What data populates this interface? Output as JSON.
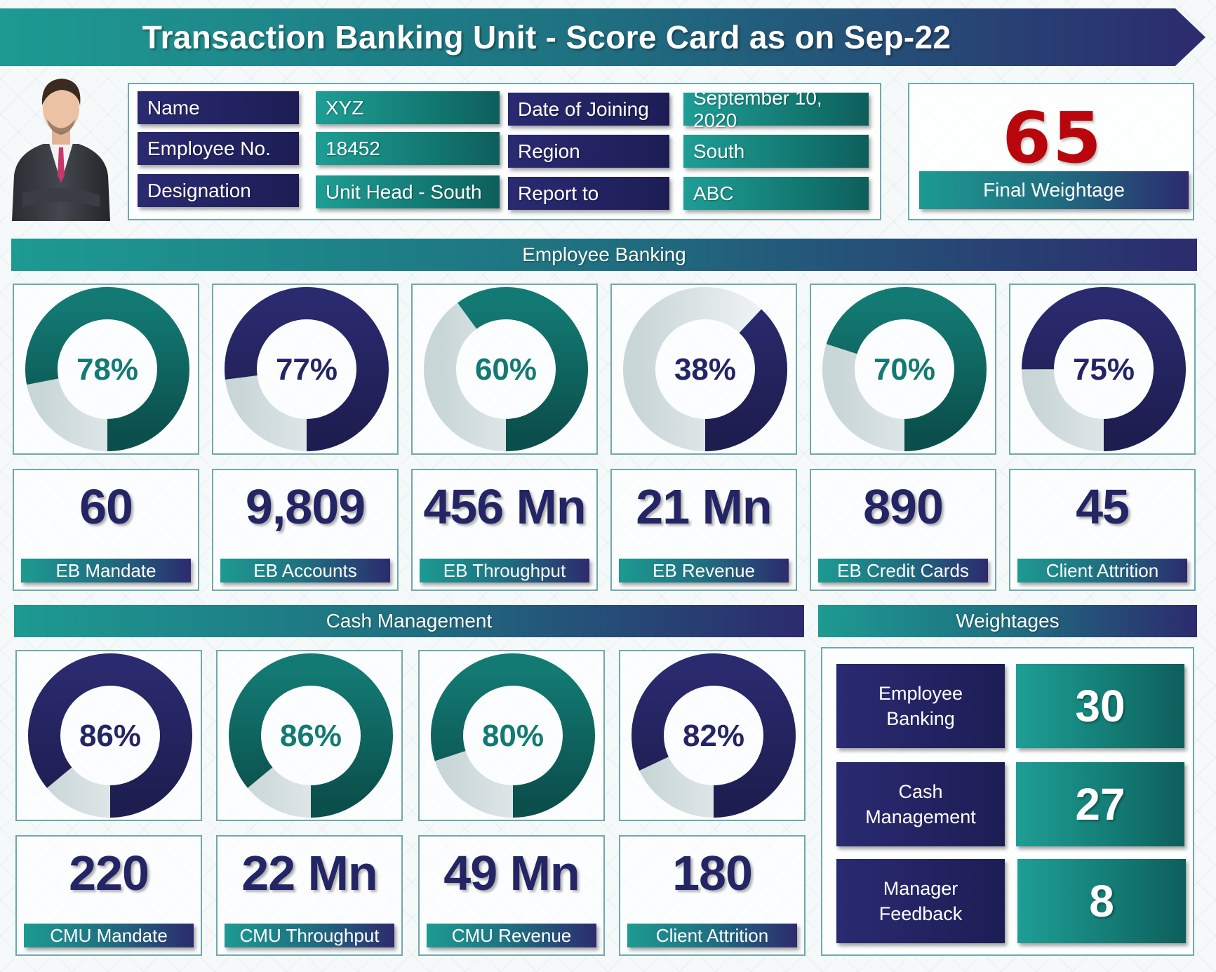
{
  "header": {
    "title": "Transaction Banking Unit - Score Card as on Sep-22"
  },
  "employee": {
    "name_label": "Name",
    "name_value": "XYZ",
    "empno_label": "Employee No.",
    "empno_value": "18452",
    "designation_label": "Designation",
    "designation_value": "Unit Head - South",
    "doj_label": "Date of Joining",
    "doj_value": "September 10, 2020",
    "region_label": "Region",
    "region_value": "South",
    "report_label": "Report to",
    "report_value": "ABC"
  },
  "final": {
    "value": "65",
    "label": "Final Weightage"
  },
  "eb": {
    "title": "Employee Banking",
    "donuts": [
      {
        "label": "78%",
        "pct": 78,
        "color": "teal"
      },
      {
        "label": "77%",
        "pct": 77,
        "color": "navy"
      },
      {
        "label": "60%",
        "pct": 60,
        "color": "teal"
      },
      {
        "label": "38%",
        "pct": 38,
        "color": "navy"
      },
      {
        "label": "70%",
        "pct": 70,
        "color": "teal"
      },
      {
        "label": "75%",
        "pct": 75,
        "color": "navy"
      }
    ],
    "kpis": [
      {
        "value": "60",
        "label": "EB Mandate"
      },
      {
        "value": "9,809",
        "label": "EB Accounts"
      },
      {
        "value": "456 Mn",
        "label": "EB Throughput"
      },
      {
        "value": "21 Mn",
        "label": "EB Revenue"
      },
      {
        "value": "890",
        "label": "EB Credit Cards"
      },
      {
        "value": "45",
        "label": "Client Attrition"
      }
    ]
  },
  "cm": {
    "title": "Cash Management",
    "donuts": [
      {
        "label": "86%",
        "pct": 86,
        "color": "navy"
      },
      {
        "label": "86%",
        "pct": 86,
        "color": "teal"
      },
      {
        "label": "80%",
        "pct": 80,
        "color": "teal"
      },
      {
        "label": "82%",
        "pct": 82,
        "color": "navy"
      }
    ],
    "kpis": [
      {
        "value": "220",
        "label": "CMU Mandate"
      },
      {
        "value": "22 Mn",
        "label": "CMU Throughput"
      },
      {
        "value": "49 Mn",
        "label": "CMU Revenue"
      },
      {
        "value": "180",
        "label": "Client Attrition"
      }
    ]
  },
  "weights": {
    "title": "Weightages",
    "rows": [
      {
        "label_line1": "Employee",
        "label_line2": "Banking",
        "value": "30"
      },
      {
        "label_line1": "Cash",
        "label_line2": "Management",
        "value": "27"
      },
      {
        "label_line1": "Manager",
        "label_line2": "Feedback",
        "value": "8"
      }
    ]
  },
  "colors": {
    "teal": "#137a73",
    "navy": "#2a2a6e",
    "final_red": "#b8060c",
    "kpi_text": "#242565"
  }
}
